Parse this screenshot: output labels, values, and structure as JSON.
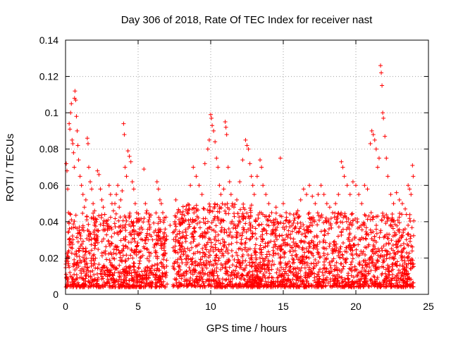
{
  "chart_data": {
    "type": "scatter",
    "title": "Day 306 of 2018, Rate Of TEC Index for receiver nast",
    "xlabel": "GPS time / hours",
    "ylabel": "ROTI / TECUs",
    "xlim": [
      0,
      25
    ],
    "ylim": [
      0,
      0.14
    ],
    "x_ticks": [
      "0",
      "5",
      "10",
      "15",
      "20",
      "25"
    ],
    "y_ticks": [
      "0",
      "0.02",
      "0.04",
      "0.06",
      "0.08",
      "0.1",
      "0.12",
      "0.14"
    ],
    "grid": true,
    "marker": "plus",
    "color": "#ff0000",
    "series": [
      {
        "points": [
          [
            0.05,
            0.072
          ],
          [
            0.1,
            0.068
          ],
          [
            0.15,
            0.058
          ],
          [
            0.2,
            0.045
          ],
          [
            0.25,
            0.094
          ],
          [
            0.3,
            0.091
          ],
          [
            0.35,
            0.1
          ],
          [
            0.4,
            0.105
          ],
          [
            0.45,
            0.085
          ],
          [
            0.5,
            0.083
          ],
          [
            0.55,
            0.078
          ],
          [
            0.6,
            0.07
          ],
          [
            0.62,
            0.108
          ],
          [
            0.65,
            0.112
          ],
          [
            0.7,
            0.107
          ],
          [
            0.75,
            0.098
          ],
          [
            0.8,
            0.09
          ],
          [
            0.85,
            0.082
          ],
          [
            0.9,
            0.074
          ],
          [
            1.0,
            0.065
          ],
          [
            1.1,
            0.06
          ],
          [
            1.2,
            0.055
          ],
          [
            1.3,
            0.048
          ],
          [
            1.4,
            0.052
          ],
          [
            1.5,
            0.086
          ],
          [
            1.55,
            0.083
          ],
          [
            1.6,
            0.07
          ],
          [
            1.7,
            0.062
          ],
          [
            1.8,
            0.058
          ],
          [
            1.9,
            0.05
          ],
          [
            2.0,
            0.046
          ],
          [
            2.1,
            0.04
          ],
          [
            2.2,
            0.068
          ],
          [
            2.3,
            0.066
          ],
          [
            2.4,
            0.058
          ],
          [
            2.5,
            0.052
          ],
          [
            2.6,
            0.048
          ],
          [
            2.7,
            0.044
          ],
          [
            2.8,
            0.04
          ],
          [
            2.9,
            0.038
          ],
          [
            3.0,
            0.06
          ],
          [
            3.1,
            0.055
          ],
          [
            3.2,
            0.05
          ],
          [
            3.3,
            0.046
          ],
          [
            3.4,
            0.05
          ],
          [
            3.5,
            0.055
          ],
          [
            3.6,
            0.06
          ],
          [
            3.7,
            0.048
          ],
          [
            3.8,
            0.052
          ],
          [
            3.9,
            0.057
          ],
          [
            4.0,
            0.094
          ],
          [
            4.05,
            0.088
          ],
          [
            4.1,
            0.07
          ],
          [
            4.2,
            0.065
          ],
          [
            4.3,
            0.079
          ],
          [
            4.4,
            0.076
          ],
          [
            4.5,
            0.073
          ],
          [
            4.6,
            0.062
          ],
          [
            4.7,
            0.058
          ],
          [
            4.8,
            0.05
          ],
          [
            4.9,
            0.045
          ],
          [
            5.0,
            0.04
          ],
          [
            5.1,
            0.036
          ],
          [
            5.2,
            0.034
          ],
          [
            5.3,
            0.03
          ],
          [
            5.4,
            0.069
          ],
          [
            5.5,
            0.05
          ],
          [
            5.6,
            0.046
          ],
          [
            5.7,
            0.04
          ],
          [
            5.8,
            0.036
          ],
          [
            5.9,
            0.032
          ],
          [
            6.0,
            0.03
          ],
          [
            6.1,
            0.026
          ],
          [
            6.2,
            0.024
          ],
          [
            6.3,
            0.062
          ],
          [
            6.4,
            0.058
          ],
          [
            6.5,
            0.052
          ],
          [
            6.6,
            0.05
          ],
          [
            6.7,
            0.045
          ],
          [
            6.8,
            0.034
          ],
          [
            6.9,
            0.03
          ],
          [
            7.2,
            0.038
          ],
          [
            7.4,
            0.034
          ],
          [
            7.6,
            0.052
          ],
          [
            7.8,
            0.046
          ],
          [
            8.0,
            0.042
          ],
          [
            8.2,
            0.04
          ],
          [
            8.4,
            0.045
          ],
          [
            8.6,
            0.06
          ],
          [
            8.8,
            0.07
          ],
          [
            9.0,
            0.065
          ],
          [
            9.2,
            0.06
          ],
          [
            9.4,
            0.055
          ],
          [
            9.6,
            0.072
          ],
          [
            9.8,
            0.08
          ],
          [
            9.9,
            0.085
          ],
          [
            10.0,
            0.099
          ],
          [
            10.05,
            0.097
          ],
          [
            10.1,
            0.093
          ],
          [
            10.2,
            0.09
          ],
          [
            10.3,
            0.084
          ],
          [
            10.4,
            0.075
          ],
          [
            10.5,
            0.07
          ],
          [
            10.6,
            0.06
          ],
          [
            10.7,
            0.055
          ],
          [
            10.8,
            0.05
          ],
          [
            10.9,
            0.058
          ],
          [
            11.0,
            0.095
          ],
          [
            11.05,
            0.092
          ],
          [
            11.1,
            0.088
          ],
          [
            11.2,
            0.07
          ],
          [
            11.3,
            0.062
          ],
          [
            11.4,
            0.055
          ],
          [
            11.5,
            0.05
          ],
          [
            11.6,
            0.048
          ],
          [
            11.8,
            0.052
          ],
          [
            12.0,
            0.062
          ],
          [
            12.2,
            0.074
          ],
          [
            12.4,
            0.085
          ],
          [
            12.5,
            0.082
          ],
          [
            12.6,
            0.08
          ],
          [
            12.7,
            0.072
          ],
          [
            12.8,
            0.065
          ],
          [
            12.9,
            0.06
          ],
          [
            13.0,
            0.055
          ],
          [
            13.2,
            0.065
          ],
          [
            13.4,
            0.074
          ],
          [
            13.5,
            0.07
          ],
          [
            13.6,
            0.06
          ],
          [
            13.8,
            0.055
          ],
          [
            14.0,
            0.05
          ],
          [
            14.2,
            0.045
          ],
          [
            14.5,
            0.048
          ],
          [
            14.8,
            0.075
          ],
          [
            15.0,
            0.05
          ],
          [
            15.2,
            0.045
          ],
          [
            15.4,
            0.04
          ],
          [
            15.6,
            0.038
          ],
          [
            15.8,
            0.042
          ],
          [
            16.0,
            0.046
          ],
          [
            16.2,
            0.052
          ],
          [
            16.4,
            0.058
          ],
          [
            16.6,
            0.055
          ],
          [
            16.8,
            0.06
          ],
          [
            17.0,
            0.054
          ],
          [
            17.2,
            0.05
          ],
          [
            17.4,
            0.055
          ],
          [
            17.6,
            0.06
          ],
          [
            17.8,
            0.055
          ],
          [
            18.0,
            0.05
          ],
          [
            18.2,
            0.048
          ],
          [
            18.4,
            0.045
          ],
          [
            18.6,
            0.05
          ],
          [
            18.8,
            0.055
          ],
          [
            19.0,
            0.073
          ],
          [
            19.1,
            0.07
          ],
          [
            19.2,
            0.065
          ],
          [
            19.4,
            0.06
          ],
          [
            19.6,
            0.055
          ],
          [
            19.8,
            0.062
          ],
          [
            20.0,
            0.06
          ],
          [
            20.2,
            0.055
          ],
          [
            20.4,
            0.05
          ],
          [
            20.6,
            0.06
          ],
          [
            20.8,
            0.058
          ],
          [
            21.0,
            0.083
          ],
          [
            21.1,
            0.09
          ],
          [
            21.2,
            0.088
          ],
          [
            21.3,
            0.085
          ],
          [
            21.4,
            0.08
          ],
          [
            21.5,
            0.07
          ],
          [
            21.6,
            0.075
          ],
          [
            21.7,
            0.126
          ],
          [
            21.75,
            0.122
          ],
          [
            21.8,
            0.115
          ],
          [
            21.85,
            0.1
          ],
          [
            21.9,
            0.097
          ],
          [
            22.0,
            0.087
          ],
          [
            22.1,
            0.075
          ],
          [
            22.2,
            0.065
          ],
          [
            22.4,
            0.055
          ],
          [
            22.6,
            0.05
          ],
          [
            22.8,
            0.056
          ],
          [
            23.0,
            0.052
          ],
          [
            23.2,
            0.05
          ],
          [
            23.4,
            0.047
          ],
          [
            23.6,
            0.06
          ],
          [
            23.7,
            0.058
          ],
          [
            23.8,
            0.055
          ],
          [
            23.9,
            0.071
          ],
          [
            23.95,
            0.065
          ]
        ]
      }
    ],
    "dense_band": [
      {
        "x_from": 0.0,
        "x_to": 7.0,
        "y_min": 0.004,
        "y_max": 0.045
      },
      {
        "x_from": 7.4,
        "x_to": 13.0,
        "y_min": 0.004,
        "y_max": 0.05
      },
      {
        "x_from": 13.0,
        "x_to": 24.0,
        "y_min": 0.004,
        "y_max": 0.045
      }
    ]
  }
}
